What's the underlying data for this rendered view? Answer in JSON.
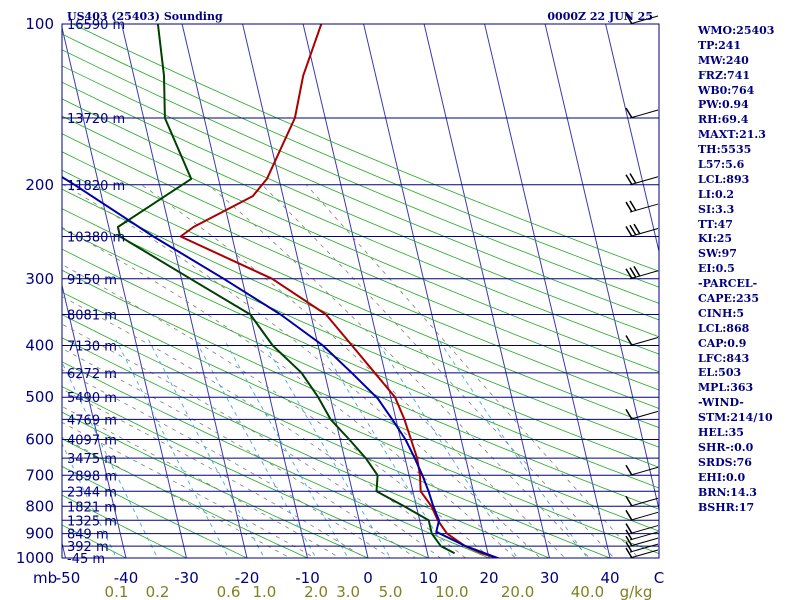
{
  "header": {
    "left": "US403 (25403) Sounding",
    "right": "0000Z 22 JUN 25"
  },
  "chart_data": {
    "type": "skew-t log-p",
    "pressure_axis": {
      "unit_label": "mb",
      "range": [
        1000,
        100
      ],
      "log": true,
      "ticks": [
        {
          "p": 100,
          "label": "100"
        },
        {
          "p": 200,
          "label": "200"
        },
        {
          "p": 300,
          "label": "300"
        },
        {
          "p": 400,
          "label": "400"
        },
        {
          "p": 500,
          "label": "500"
        },
        {
          "p": 600,
          "label": "600"
        },
        {
          "p": 700,
          "label": "700"
        },
        {
          "p": 800,
          "label": "800"
        },
        {
          "p": 900,
          "label": "900"
        },
        {
          "p": 1000,
          "label": "1000"
        }
      ]
    },
    "temperature_axis": {
      "unit": "C",
      "range": [
        -50,
        50
      ],
      "ticks": [
        {
          "t": -40,
          "label": "-40"
        },
        {
          "t": -30,
          "label": "-30"
        },
        {
          "t": -20,
          "label": "-20"
        },
        {
          "t": -10,
          "label": "-10"
        },
        {
          "t": 0,
          "label": "0"
        },
        {
          "t": 10,
          "label": "10"
        },
        {
          "t": 20,
          "label": "20"
        },
        {
          "t": 30,
          "label": "30"
        },
        {
          "t": 40,
          "label": "40"
        }
      ],
      "left_label": "-50",
      "right_label": "C"
    },
    "mixing_ratio_axis": {
      "unit": "g/kg",
      "labels": [
        {
          "w": 0.1,
          "label": "0.1"
        },
        {
          "w": 0.2,
          "label": "0.2"
        },
        {
          "w": 0.6,
          "label": "0.6"
        },
        {
          "w": 1.0,
          "label": "1.0"
        },
        {
          "w": 2.0,
          "label": "2.0"
        },
        {
          "w": 3.0,
          "label": "3.0"
        },
        {
          "w": 5.0,
          "label": "5.0"
        },
        {
          "w": 10.0,
          "label": "10.0"
        },
        {
          "w": 20.0,
          "label": "20.0"
        },
        {
          "w": 40.0,
          "label": "40.0"
        }
      ]
    },
    "height_labels": [
      {
        "p": 100,
        "label": "16590 m"
      },
      {
        "p": 150,
        "label": "13720 m"
      },
      {
        "p": 200,
        "label": "11820 m"
      },
      {
        "p": 250,
        "label": "10380 m"
      },
      {
        "p": 300,
        "label": "9150 m"
      },
      {
        "p": 350,
        "label": "8081 m"
      },
      {
        "p": 400,
        "label": "7130 m"
      },
      {
        "p": 450,
        "label": "6272 m"
      },
      {
        "p": 500,
        "label": "5490 m"
      },
      {
        "p": 550,
        "label": "4769 m"
      },
      {
        "p": 600,
        "label": "4097 m"
      },
      {
        "p": 650,
        "label": "3475 m"
      },
      {
        "p": 700,
        "label": "2898 m"
      },
      {
        "p": 750,
        "label": "2344 m"
      },
      {
        "p": 800,
        "label": "1821 m"
      },
      {
        "p": 850,
        "label": "1325 m"
      },
      {
        "p": 900,
        "label": "849 m"
      },
      {
        "p": 950,
        "label": "392 m"
      },
      {
        "p": 1000,
        "label": "-45 m"
      }
    ],
    "series": [
      {
        "key": "temperature",
        "color": "#aa0000",
        "points": [
          [
            1006,
            22
          ],
          [
            980,
            19
          ],
          [
            950,
            16.5
          ],
          [
            900,
            14
          ],
          [
            850,
            13
          ],
          [
            800,
            12.5
          ],
          [
            750,
            11.3
          ],
          [
            700,
            11.8
          ],
          [
            650,
            12
          ],
          [
            600,
            11.7
          ],
          [
            550,
            11.4
          ],
          [
            500,
            10.7
          ],
          [
            450,
            8.3
          ],
          [
            400,
            5.6
          ],
          [
            350,
            2.5
          ],
          [
            300,
            -5
          ],
          [
            250,
            -18.5
          ],
          [
            240,
            -16
          ],
          [
            210,
            -5
          ],
          [
            195,
            -2
          ],
          [
            150,
            5
          ],
          [
            125,
            8
          ],
          [
            100,
            13
          ]
        ]
      },
      {
        "key": "dewpoint",
        "color": "#004000",
        "points": [
          [
            980,
            14.5
          ],
          [
            950,
            12.5
          ],
          [
            900,
            11.5
          ],
          [
            850,
            11.5
          ],
          [
            800,
            8
          ],
          [
            750,
            4
          ],
          [
            700,
            4.8
          ],
          [
            650,
            3.5
          ],
          [
            600,
            1.5
          ],
          [
            550,
            -0.8
          ],
          [
            500,
            -2
          ],
          [
            450,
            -3.8
          ],
          [
            400,
            -7.5
          ],
          [
            350,
            -10
          ],
          [
            300,
            -18.5
          ],
          [
            250,
            -28.5
          ],
          [
            240,
            -28.5
          ],
          [
            195,
            -14.5
          ],
          [
            150,
            -16.5
          ],
          [
            125,
            -15
          ],
          [
            100,
            -14
          ]
        ]
      },
      {
        "key": "parcel",
        "color": "#0000aa",
        "points": [
          [
            1006,
            22
          ],
          [
            950,
            16.6
          ],
          [
            893,
            12.3
          ],
          [
            850,
            13.2
          ],
          [
            800,
            12.8
          ],
          [
            750,
            12.6
          ],
          [
            700,
            12.2
          ],
          [
            650,
            11.6
          ],
          [
            600,
            10.8
          ],
          [
            550,
            9.4
          ],
          [
            503,
            7.8
          ],
          [
            450,
            4.5
          ],
          [
            400,
            0.8
          ],
          [
            350,
            -5
          ],
          [
            300,
            -13
          ],
          [
            250,
            -23
          ],
          [
            200,
            -34
          ],
          [
            160,
            -46
          ],
          [
            125,
            -56
          ]
        ]
      }
    ],
    "wind_barbs": [
      {
        "p": 1000,
        "barbs": 1
      },
      {
        "p": 975,
        "barbs": 1
      },
      {
        "p": 950,
        "barbs": 1
      },
      {
        "p": 925,
        "barbs": 1
      },
      {
        "p": 900,
        "barbs": 1
      },
      {
        "p": 850,
        "barbs": 1
      },
      {
        "p": 800,
        "barbs": 1
      },
      {
        "p": 700,
        "barbs": 1
      },
      {
        "p": 550,
        "barbs": 1
      },
      {
        "p": 400,
        "barbs": 1
      },
      {
        "p": 300,
        "barbs": 3
      },
      {
        "p": 250,
        "barbs": 3
      },
      {
        "p": 225,
        "barbs": 2
      },
      {
        "p": 200,
        "barbs": 2
      },
      {
        "p": 150,
        "barbs": 1
      },
      {
        "p": 100,
        "barbs": 1
      }
    ]
  },
  "indices": [
    "WMO:25403",
    "TP:241",
    "MW:240",
    "FRZ:741",
    "WB0:764",
    "PW:0.94",
    "RH:69.4",
    "MAXT:21.3",
    "TH:5535",
    "L57:5.6",
    "LCL:893",
    "LI:0.2",
    "SI:3.3",
    "TT:47",
    "KI:25",
    "SW:97",
    "EI:0.5",
    "-PARCEL-",
    "CAPE:235",
    "CINH:5",
    "LCL:868",
    "CAP:0.9",
    "LFC:843",
    "EL:503",
    "MPL:363",
    "-WIND-",
    "STM:214/10",
    "HEL:35",
    "SHR-:0.0",
    "SRDS:76",
    "EHI:0.0",
    "BRN:14.3",
    "BSHR:17"
  ]
}
